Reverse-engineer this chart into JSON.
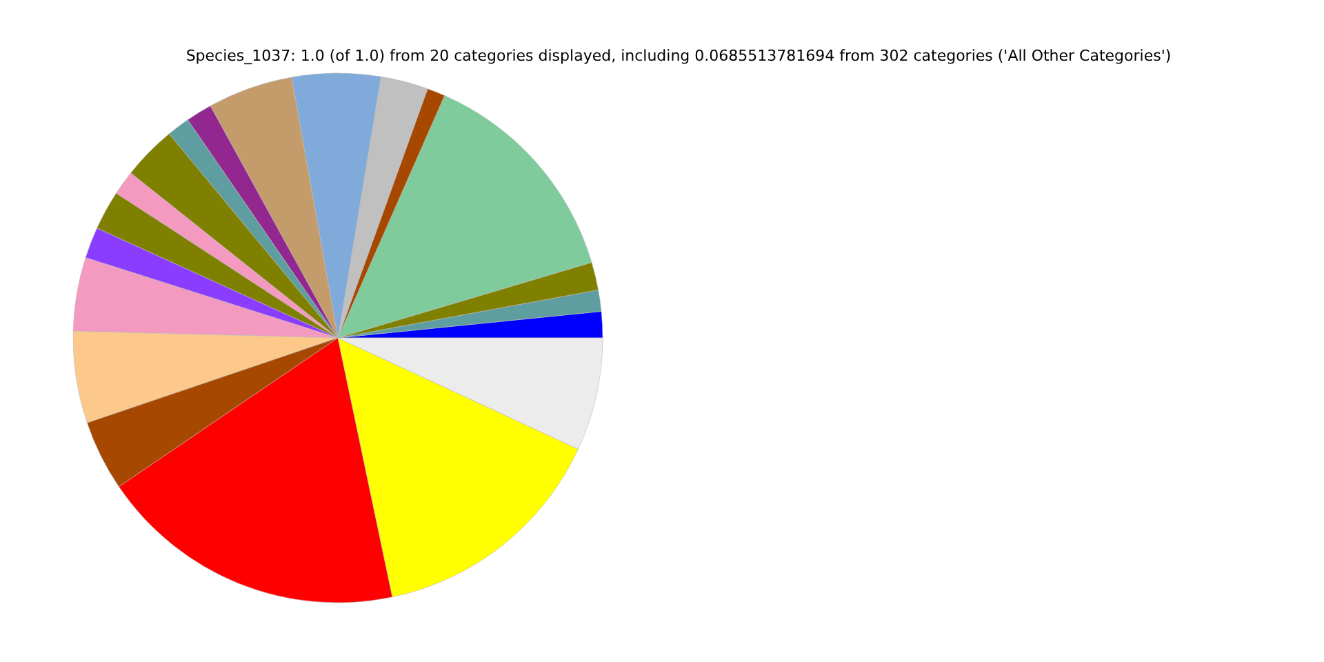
{
  "chart_data": {
    "type": "pie",
    "title": "Species_1037: 1.0 (of 1.0) from 20 categories displayed, including 0.0685513781694 from 302 categories ('All Other Categories')",
    "categories": [
      null,
      null,
      null,
      null,
      null,
      null,
      null,
      null,
      null,
      null,
      null,
      null,
      null,
      null,
      null,
      null,
      null,
      null,
      null,
      null
    ],
    "values": [
      1.6,
      1.3,
      1.7,
      13.8,
      1.1,
      2.9,
      5.4,
      5.2,
      1.6,
      1.4,
      3.3,
      1.5,
      2.4,
      1.9,
      4.5,
      5.6,
      4.3,
      18.8,
      14.8,
      6.9
    ],
    "colors": [
      "#0000ff",
      "#5f9ea0",
      "#808000",
      "#80cb9c",
      "#a64800",
      "#c0c0c0",
      "#7faad9",
      "#c49c6c",
      "#92278f",
      "#5f9ea0",
      "#808000",
      "#f49ac1",
      "#808000",
      "#8b3dff",
      "#f49ac1",
      "#fdc98b",
      "#a64800",
      "#ff0000",
      "#ffff00",
      "#ececec"
    ]
  }
}
